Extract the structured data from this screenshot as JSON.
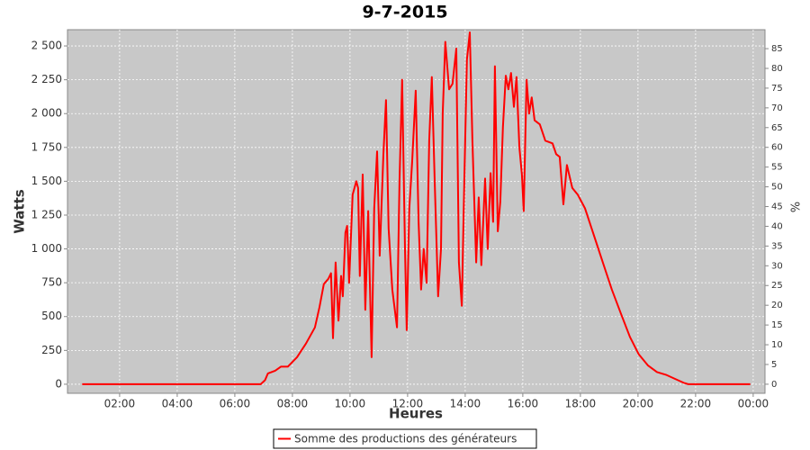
{
  "chart_data": {
    "type": "line",
    "title": "9-7-2015",
    "x_label": "Heures",
    "y_label": "Watts",
    "y2_label": "%",
    "x": [
      0.7,
      6.9,
      7.05,
      7.15,
      7.4,
      7.6,
      7.84,
      8.16,
      8.47,
      8.78,
      8.94,
      9.09,
      9.25,
      9.34,
      9.41,
      9.5,
      9.6,
      9.69,
      9.75,
      9.84,
      9.9,
      9.97,
      10.09,
      10.22,
      10.28,
      10.34,
      10.44,
      10.53,
      10.63,
      10.75,
      10.84,
      10.94,
      11.03,
      11.16,
      11.25,
      11.34,
      11.47,
      11.63,
      11.72,
      11.81,
      11.91,
      11.97,
      12.06,
      12.16,
      12.28,
      12.38,
      12.47,
      12.56,
      12.66,
      12.75,
      12.84,
      12.94,
      13.06,
      13.16,
      13.22,
      13.31,
      13.44,
      13.56,
      13.69,
      13.78,
      13.88,
      13.97,
      14.06,
      14.16,
      14.25,
      14.38,
      14.47,
      14.56,
      14.69,
      14.78,
      14.88,
      14.97,
      15.03,
      15.13,
      15.22,
      15.31,
      15.41,
      15.5,
      15.59,
      15.69,
      15.78,
      15.88,
      15.97,
      16.03,
      16.13,
      16.22,
      16.31,
      16.41,
      16.59,
      16.78,
      17.03,
      17.16,
      17.28,
      17.41,
      17.53,
      17.72,
      17.91,
      18.16,
      18.47,
      18.78,
      19.09,
      19.41,
      19.72,
      20.03,
      20.34,
      20.66,
      20.97,
      21.28,
      21.59,
      21.75,
      23.9
    ],
    "series": [
      {
        "name": "Somme des productions des  générateurs",
        "color": "#ff0000",
        "values": [
          0,
          0,
          30,
          80,
          100,
          130,
          130,
          200,
          300,
          420,
          570,
          740,
          780,
          820,
          340,
          900,
          470,
          800,
          650,
          1120,
          1170,
          750,
          1400,
          1500,
          1450,
          800,
          1550,
          550,
          1280,
          200,
          1300,
          1720,
          950,
          1700,
          2100,
          1150,
          700,
          420,
          1500,
          2250,
          1000,
          400,
          1300,
          1650,
          2170,
          1200,
          700,
          1000,
          750,
          1800,
          2270,
          1500,
          650,
          1000,
          2000,
          2530,
          2180,
          2220,
          2480,
          900,
          580,
          1500,
          2400,
          2600,
          1800,
          900,
          1380,
          880,
          1520,
          1000,
          1560,
          1200,
          2350,
          1130,
          1350,
          1900,
          2280,
          2180,
          2300,
          2050,
          2270,
          1750,
          1550,
          1280,
          2250,
          2000,
          2120,
          1950,
          1920,
          1800,
          1780,
          1700,
          1680,
          1330,
          1620,
          1450,
          1400,
          1300,
          1100,
          900,
          700,
          520,
          350,
          220,
          140,
          90,
          70,
          40,
          10,
          0,
          0
        ]
      }
    ],
    "xlim": [
      0.19,
      24.41
    ],
    "xticks": [
      {
        "value": 2,
        "label": "02:00"
      },
      {
        "value": 4,
        "label": "04:00"
      },
      {
        "value": 6,
        "label": "06:00"
      },
      {
        "value": 8,
        "label": "08:00"
      },
      {
        "value": 10,
        "label": "10:00"
      },
      {
        "value": 12,
        "label": "12:00"
      },
      {
        "value": 14,
        "label": "14:00"
      },
      {
        "value": 16,
        "label": "16:00"
      },
      {
        "value": 18,
        "label": "18:00"
      },
      {
        "value": 20,
        "label": "20:00"
      },
      {
        "value": 22,
        "label": "22:00"
      },
      {
        "value": 24,
        "label": "00:00"
      }
    ],
    "ylim": [
      -67,
      2620
    ],
    "yticks": [
      0,
      250,
      500,
      750,
      {
        "value": 1000,
        "label": "1 000"
      },
      {
        "value": 1250,
        "label": "1 250"
      },
      {
        "value": 1500,
        "label": "1 500"
      },
      {
        "value": 1750,
        "label": "1 750"
      },
      {
        "value": 2000,
        "label": "2 000"
      },
      {
        "value": 2250,
        "label": "2 250"
      },
      {
        "value": 2500,
        "label": "2 500"
      }
    ],
    "y2lim": [
      -2.3,
      89.8
    ],
    "y2ticks": [
      0,
      5,
      10,
      15,
      20,
      25,
      30,
      35,
      40,
      45,
      50,
      55,
      60,
      65,
      70,
      75,
      80,
      85
    ],
    "grid": true,
    "legend": "bottom"
  }
}
